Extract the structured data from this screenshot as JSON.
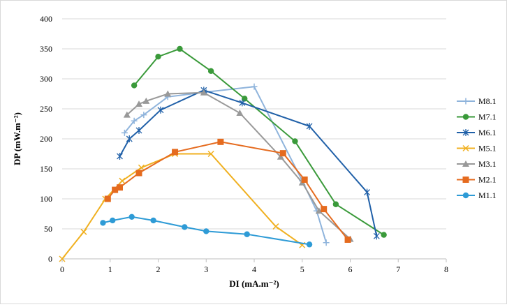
{
  "chart_data": {
    "type": "line",
    "title": "",
    "xlabel": "DI (mA.m⁻²)",
    "ylabel": "DP (mW.m⁻²)",
    "xlim": [
      0,
      8
    ],
    "ylim": [
      0,
      400
    ],
    "xticks": [
      0,
      1,
      2,
      3,
      4,
      5,
      6,
      7,
      8
    ],
    "yticks": [
      0,
      50,
      100,
      150,
      200,
      250,
      300,
      350,
      400
    ],
    "grid": "horizontal",
    "legend_position": "right",
    "series": [
      {
        "name": "M8.1",
        "color": "#8fb4dc",
        "marker": "plus",
        "points": [
          [
            1.3,
            210
          ],
          [
            1.5,
            230
          ],
          [
            1.7,
            240
          ],
          [
            2.2,
            270
          ],
          [
            3.0,
            278
          ],
          [
            4.0,
            287
          ],
          [
            5.0,
            130
          ],
          [
            5.3,
            80
          ],
          [
            5.5,
            27
          ]
        ]
      },
      {
        "name": "M7.1",
        "color": "#3a9a3a",
        "marker": "circle",
        "points": [
          [
            1.5,
            289
          ],
          [
            2.0,
            337
          ],
          [
            2.45,
            350
          ],
          [
            3.1,
            313
          ],
          [
            3.8,
            267
          ],
          [
            4.85,
            196
          ],
          [
            5.7,
            91
          ],
          [
            6.7,
            40
          ]
        ]
      },
      {
        "name": "M6.1",
        "color": "#2060a8",
        "marker": "star",
        "points": [
          [
            1.2,
            171
          ],
          [
            1.4,
            200
          ],
          [
            1.6,
            214
          ],
          [
            2.05,
            248
          ],
          [
            2.95,
            281
          ],
          [
            3.75,
            260
          ],
          [
            5.15,
            221
          ],
          [
            6.35,
            111
          ],
          [
            6.55,
            38
          ]
        ]
      },
      {
        "name": "M5.1",
        "color": "#f0b020",
        "marker": "x",
        "points": [
          [
            0,
            0
          ],
          [
            0.45,
            45
          ],
          [
            0.9,
            100
          ],
          [
            1.25,
            130
          ],
          [
            1.65,
            152
          ],
          [
            2.35,
            175
          ],
          [
            3.1,
            175
          ],
          [
            4.45,
            54
          ],
          [
            5.0,
            23
          ]
        ]
      },
      {
        "name": "M3.1",
        "color": "#999999",
        "marker": "triangle",
        "points": [
          [
            1.35,
            240
          ],
          [
            1.6,
            258
          ],
          [
            1.75,
            263
          ],
          [
            2.2,
            275
          ],
          [
            2.95,
            277
          ],
          [
            3.7,
            243
          ],
          [
            4.55,
            170
          ],
          [
            5.0,
            127
          ],
          [
            5.35,
            80
          ],
          [
            6.0,
            33
          ]
        ]
      },
      {
        "name": "M2.1",
        "color": "#e56b1f",
        "marker": "square",
        "points": [
          [
            0.95,
            100
          ],
          [
            1.1,
            115
          ],
          [
            1.2,
            119
          ],
          [
            1.6,
            143
          ],
          [
            2.35,
            178
          ],
          [
            3.3,
            195
          ],
          [
            4.6,
            176
          ],
          [
            5.05,
            132
          ],
          [
            5.45,
            83
          ],
          [
            5.95,
            32
          ]
        ]
      },
      {
        "name": "M1.1",
        "color": "#2e9bd6",
        "marker": "circle",
        "points": [
          [
            0.85,
            60
          ],
          [
            1.05,
            64
          ],
          [
            1.45,
            70
          ],
          [
            1.9,
            64
          ],
          [
            2.55,
            53
          ],
          [
            3.0,
            46
          ],
          [
            3.85,
            41
          ],
          [
            5.15,
            24
          ]
        ]
      }
    ]
  }
}
